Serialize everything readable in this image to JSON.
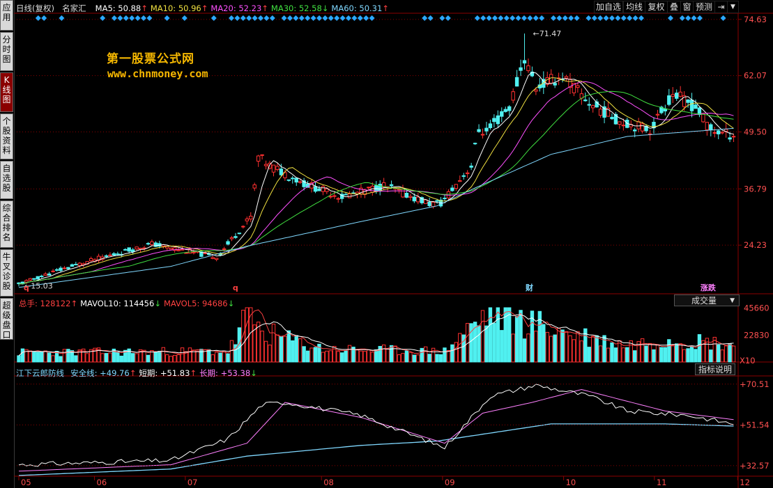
{
  "sidebar": {
    "items": [
      {
        "label": "应\n用",
        "active": false
      },
      {
        "label": "分\n时\n图",
        "active": false
      },
      {
        "label": "K\n线\n图",
        "active": true
      },
      {
        "label": "个\n股\n资\n料",
        "active": false
      },
      {
        "label": "自\n选\n股",
        "active": false
      },
      {
        "label": "综\n合\n排\n名",
        "active": false
      },
      {
        "label": "牛\n叉\n诊\n股",
        "active": false
      },
      {
        "label": "超\n级\n盘\n口",
        "active": false
      }
    ]
  },
  "header": {
    "period": "日线(复权)",
    "stock": "名家汇",
    "ma": [
      {
        "label": "MA5: 50.88",
        "arrow": "↑",
        "color": "#ffffff"
      },
      {
        "label": "MA10: 50.96",
        "arrow": "↑",
        "color": "#f0e040"
      },
      {
        "label": "MA20: 52.23",
        "arrow": "↑",
        "color": "#ff50ff"
      },
      {
        "label": "MA30: 52.58",
        "arrow": "↓",
        "color": "#40e040"
      },
      {
        "label": "MA60: 50.31",
        "arrow": "↑",
        "color": "#80d8ff"
      }
    ]
  },
  "toolbar": {
    "buttons": [
      "加自选",
      "均线",
      "复权",
      "叠",
      "窗",
      "预测"
    ],
    "exit_icon": "exit-icon",
    "dropdown_icon": "chevron-down-icon"
  },
  "watermark": {
    "line1": "第一股票公式网",
    "line2": "www.chnmoney.com"
  },
  "price_chart": {
    "y_ticks": [
      "74.63",
      "62.07",
      "49.50",
      "36.79",
      "24.23"
    ],
    "max_label": "71.47",
    "min_label": "15.03",
    "markers": [
      {
        "text": "q",
        "index": 2,
        "color": "#ff4040"
      },
      {
        "text": "q",
        "index": 57,
        "color": "#ff4040"
      },
      {
        "text": "财",
        "index": 134,
        "color": "#80d8ff"
      },
      {
        "text": "涨跌",
        "index": 180,
        "color": "#ff80ff"
      }
    ]
  },
  "volume_panel": {
    "header": [
      {
        "label": "总手: 128122",
        "arrow": "↑",
        "color": "#ff4040"
      },
      {
        "label": "MAVOL10: 114456",
        "arrow": "↓",
        "color": "#ffffff"
      },
      {
        "label": "MAVOL5: 94686",
        "arrow": "↓",
        "color": "#ff4040"
      }
    ],
    "selector": "成交量",
    "y_ticks": [
      "45660",
      "22830",
      "X10"
    ]
  },
  "indicator_panel": {
    "name": "江下云郎防线",
    "header": [
      {
        "label": "安全线: +49.76",
        "arrow": "↑",
        "color": "#80d8ff"
      },
      {
        "label": "短期: +51.83",
        "arrow": "↑",
        "color": "#ffffff"
      },
      {
        "label": "长期: +53.38",
        "arrow": "↓",
        "color": "#ff80ff"
      }
    ],
    "button": "指标说明",
    "y_ticks": [
      "+70.51",
      "+51.54",
      "+32.57"
    ]
  },
  "x_axis": {
    "labels": [
      "05",
      "06",
      "07",
      "08",
      "09",
      "10",
      "11",
      "12"
    ]
  },
  "colors": {
    "up": "#ff3030",
    "down": "#50f0f0",
    "grid": "#8b0000",
    "ma5": "#ffffff",
    "ma10": "#f0e040",
    "ma20": "#ff50ff",
    "ma30": "#40e040",
    "ma60": "#80d8ff"
  },
  "chart_data": {
    "type": "candlestick",
    "categories": [
      "05",
      "06",
      "07",
      "08",
      "09",
      "10",
      "11",
      "12"
    ],
    "ylim": [
      14,
      76
    ],
    "y_ticks": [
      74.63,
      62.07,
      49.5,
      36.79,
      24.23
    ],
    "series": [
      {
        "name": "价格",
        "anchor_idx": [
          0,
          10,
          20,
          35,
          52,
          61,
          63,
          66,
          75,
          85,
          96,
          108,
          111,
          119,
          121,
          123,
          129,
          133,
          136,
          143,
          150,
          158,
          166,
          172,
          178,
          182,
          186,
          188
        ],
        "anchor_val": [
          15.5,
          18.5,
          21.0,
          24.5,
          21.5,
          30.5,
          44.0,
          42.0,
          38.0,
          35.0,
          37.5,
          33.5,
          33.5,
          42.0,
          50.0,
          49.5,
          55.0,
          66.0,
          59.5,
          62.0,
          56.0,
          52.0,
          50.0,
          58.0,
          55.0,
          50.0,
          49.0,
          49.0
        ]
      },
      {
        "name": "MA60",
        "anchor_idx": [
          0,
          40,
          60,
          90,
          110,
          120,
          140,
          160,
          188
        ],
        "anchor_val": [
          14.8,
          19.5,
          24.0,
          29.5,
          33.0,
          37.0,
          44.5,
          48.5,
          50.3
        ]
      }
    ],
    "volume": {
      "ylim": [
        0,
        46000
      ],
      "y_ticks": [
        45660,
        22830
      ],
      "anchor_idx": [
        0,
        55,
        57,
        60,
        64,
        80,
        112,
        116,
        124,
        130,
        136,
        145,
        160,
        170,
        188
      ],
      "anchor_val": [
        8000,
        9000,
        18000,
        44000,
        25000,
        11000,
        9000,
        22000,
        42000,
        36000,
        32000,
        24000,
        14000,
        20000,
        15000
      ]
    },
    "indicator": {
      "ylim": [
        28,
        74
      ],
      "y_ticks": [
        70.51,
        51.54,
        32.57
      ],
      "short": {
        "anchor_idx": [
          0,
          40,
          55,
          64,
          70,
          90,
          112,
          124,
          136,
          150,
          160,
          176,
          188
        ],
        "anchor_val": [
          33,
          35,
          45,
          61,
          62,
          56,
          41,
          65,
          70,
          65,
          58,
          56,
          52
        ]
      },
      "long": {
        "anchor_idx": [
          0,
          40,
          60,
          70,
          90,
          112,
          122,
          135,
          148,
          170,
          188
        ],
        "anchor_val": [
          30,
          33,
          43,
          62,
          55,
          43,
          57,
          62,
          68,
          58,
          54
        ]
      },
      "safe": {
        "anchor_idx": [
          0,
          40,
          60,
          90,
          110,
          140,
          170,
          188
        ],
        "anchor_val": [
          28,
          31,
          37,
          42,
          44,
          52,
          52,
          51
        ]
      }
    }
  }
}
